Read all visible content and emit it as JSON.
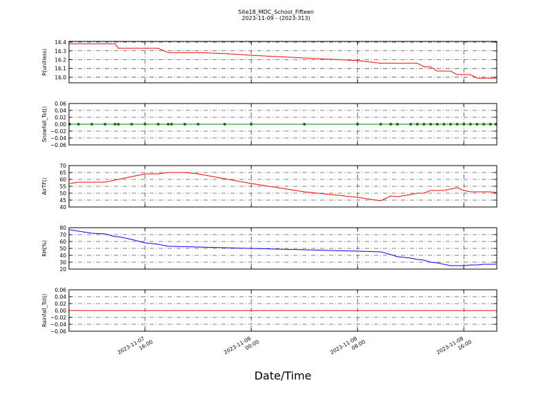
{
  "chart_data": {
    "type": "multi-panel",
    "title": "Site18_MDC_School_Fifteen",
    "subtitle": "2023-11-09 - (2023-313)",
    "xlabel": "Date/Time",
    "xlim": [
      "2023-11-07 10:17",
      "2023-11-08 18:29"
    ],
    "xticks": [
      {
        "value": "2023-11-07 16:00",
        "label": "2023-11-07\n16:00"
      },
      {
        "value": "2023-11-08 00:00",
        "label": "2023-11-08\n00:00"
      },
      {
        "value": "2023-11-08 08:00",
        "label": "2023-11-08\n08:00"
      },
      {
        "value": "2023-11-08 16:00",
        "label": "2023-11-08\n16:00"
      }
    ],
    "grid": true,
    "x": [
      "2023-11-07 10:20",
      "2023-11-07 11:00",
      "2023-11-07 12:00",
      "2023-11-07 13:00",
      "2023-11-07 13:45",
      "2023-11-07 14:00",
      "2023-11-07 15:00",
      "2023-11-07 16:00",
      "2023-11-07 17:00",
      "2023-11-07 17:45",
      "2023-11-07 18:00",
      "2023-11-07 19:00",
      "2023-11-07 20:00",
      "2023-11-07 22:00",
      "2023-11-08 00:00",
      "2023-11-08 04:00",
      "2023-11-08 08:00",
      "2023-11-08 09:45",
      "2023-11-08 10:30",
      "2023-11-08 11:00",
      "2023-11-08 12:00",
      "2023-11-08 12:30",
      "2023-11-08 13:00",
      "2023-11-08 13:30",
      "2023-11-08 14:00",
      "2023-11-08 14:30",
      "2023-11-08 15:00",
      "2023-11-08 15:30",
      "2023-11-08 16:00",
      "2023-11-08 16:30",
      "2023-11-08 17:00",
      "2023-11-08 17:30",
      "2023-11-08 18:00",
      "2023-11-08 18:25"
    ],
    "panels": [
      {
        "type": "line",
        "ylabel": "P(unitless)",
        "ylim": [
          15.937,
          16.408
        ],
        "yticks": [
          {
            "value": 16.0,
            "label": "16.0"
          },
          16.1,
          16.2,
          16.3,
          {
            "value": 16.4,
            "label": "16.4"
          }
        ],
        "series": [
          {
            "color": "#ff0000",
            "values": [
              16.38,
              16.38,
              16.38,
              16.38,
              16.38,
              16.33,
              16.33,
              16.33,
              16.33,
              16.28,
              16.28,
              16.28,
              16.28,
              16.27,
              16.25,
              16.22,
              16.19,
              16.16,
              16.16,
              16.16,
              16.16,
              16.16,
              16.12,
              16.12,
              16.07,
              16.07,
              16.07,
              16.03,
              16.03,
              16.03,
              15.99,
              15.99,
              15.99,
              15.99
            ]
          }
        ]
      },
      {
        "type": "line",
        "ylabel": "Snowfall_Tot()",
        "ylim": [
          -0.06,
          0.06
        ],
        "yticks": [
          {
            "value": -0.06,
            "label": "−0.06"
          },
          {
            "value": -0.04,
            "label": "−0.04"
          },
          {
            "value": -0.02,
            "label": "−0.02"
          },
          {
            "value": 0,
            "label": "0.00"
          },
          {
            "value": 0.02,
            "label": "0.02"
          },
          {
            "value": 0.04,
            "label": "0.04"
          },
          {
            "value": 0.06,
            "label": "0.06"
          }
        ],
        "series": [
          {
            "color": "#008000",
            "marker": true,
            "values": [
              0,
              0,
              0,
              0,
              0,
              0,
              0,
              0,
              0,
              0,
              0,
              0,
              0,
              0,
              0,
              0,
              0,
              0,
              0,
              0,
              0,
              0,
              0,
              0,
              0,
              0,
              0,
              0,
              0,
              0,
              0,
              0,
              0,
              0
            ]
          }
        ]
      },
      {
        "type": "line",
        "ylabel": "AirTF()",
        "ylim": [
          40,
          70
        ],
        "yticks": [
          40,
          45,
          50,
          55,
          60,
          65,
          70
        ],
        "series": [
          {
            "color": "#ff0000",
            "values": [
              57,
              58,
              58,
              58,
              59.5,
              60,
              62,
              64,
              64,
              65,
              65,
              65,
              64,
              60.5,
              57,
              51,
              47,
              44.5,
              48,
              47.5,
              49,
              50,
              50,
              52,
              52,
              52,
              53,
              54,
              52,
              51,
              51,
              51,
              51,
              50.5
            ]
          }
        ]
      },
      {
        "type": "line",
        "ylabel": "RH(%)",
        "ylim": [
          20,
          80
        ],
        "yticks": [
          20,
          30,
          40,
          50,
          60,
          70,
          80
        ],
        "series": [
          {
            "color": "#0000ff",
            "values": [
              77,
              75,
              72,
              71,
              67,
              67,
              63,
              58,
              56,
              53,
              53,
              52.5,
              52,
              51,
              50,
              48,
              46,
              45,
              41,
              38,
              36,
              34,
              33,
              30,
              29,
              27,
              25,
              25,
              25,
              26,
              26,
              27,
              27,
              27
            ]
          }
        ]
      },
      {
        "type": "line",
        "ylabel": "Rainfall_Tot()",
        "ylim": [
          -0.06,
          0.06
        ],
        "yticks": [
          {
            "value": -0.06,
            "label": "−0.06"
          },
          {
            "value": -0.04,
            "label": "−0.04"
          },
          {
            "value": -0.02,
            "label": "−0.02"
          },
          {
            "value": 0,
            "label": "0.00"
          },
          {
            "value": 0.02,
            "label": "0.02"
          },
          {
            "value": 0.04,
            "label": "0.04"
          },
          {
            "value": 0.06,
            "label": "0.06"
          }
        ],
        "series": [
          {
            "color": "#ff0000",
            "values": [
              0,
              0,
              0,
              0,
              0,
              0,
              0,
              0,
              0,
              0,
              0,
              0,
              0,
              0,
              0,
              0,
              0,
              0,
              0,
              0,
              0,
              0,
              0,
              0,
              0,
              0,
              0,
              0,
              0,
              0,
              0,
              0,
              0,
              0
            ]
          }
        ]
      }
    ]
  }
}
